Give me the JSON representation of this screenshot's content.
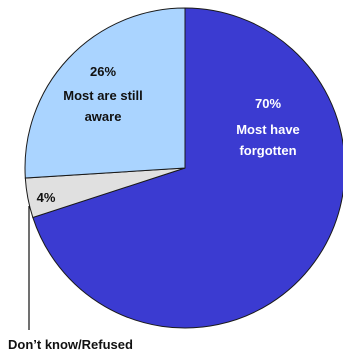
{
  "colors": {
    "background": "#ffffff",
    "edge": "#1a1a1a"
  },
  "chart_data": {
    "type": "pie",
    "slices": [
      {
        "name": "Most have forgotten",
        "value": 70,
        "percent_label": "70%",
        "label_lines": [
          "Most have",
          "forgotten"
        ],
        "color": "#3b3bd1",
        "text_color": "#ffffff"
      },
      {
        "name": "Don’t know/Refused",
        "value": 4,
        "percent_label": "4%",
        "label_lines": [],
        "color": "#e0e0e0",
        "text_color": "#111111"
      },
      {
        "name": "Most are still aware",
        "value": 26,
        "percent_label": "26%",
        "label_lines": [
          "Most are still",
          "aware"
        ],
        "color": "#aad4ff",
        "text_color": "#111111"
      }
    ],
    "callout": "Don’t know/Refused",
    "start_angle_deg": 0,
    "direction": "clockwise"
  }
}
